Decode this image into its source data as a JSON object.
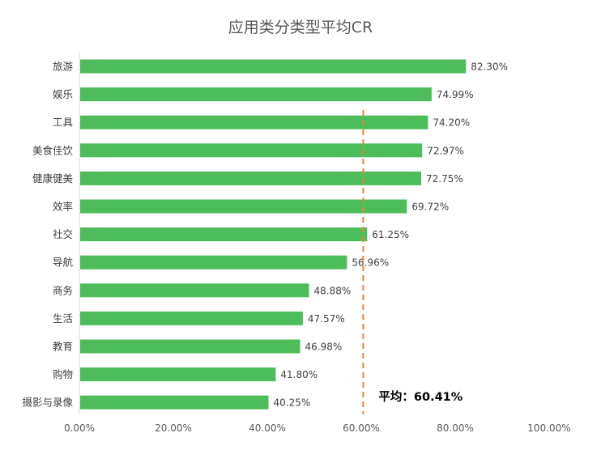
{
  "chart_data": {
    "type": "bar",
    "orientation": "horizontal",
    "title": "应用类分类型平均CR",
    "categories": [
      "旅游",
      "娱乐",
      "工具",
      "美食佳饮",
      "健康健美",
      "效率",
      "社交",
      "导航",
      "商务",
      "生活",
      "教育",
      "购物",
      "摄影与录像"
    ],
    "values": [
      82.3,
      74.99,
      74.2,
      72.97,
      72.75,
      69.72,
      61.25,
      56.96,
      48.88,
      47.57,
      46.98,
      41.8,
      40.25
    ],
    "value_labels": [
      "82.30%",
      "74.99%",
      "74.20%",
      "72.97%",
      "72.75%",
      "69.72%",
      "61.25%",
      "56.96%",
      "48.88%",
      "47.57%",
      "46.98%",
      "41.80%",
      "40.25%"
    ],
    "xlim": [
      0,
      100
    ],
    "x_ticks": [
      0,
      20,
      40,
      60,
      80,
      100
    ],
    "x_tick_labels": [
      "0.00%",
      "20.00%",
      "40.00%",
      "60.00%",
      "80.00%",
      "100.00%"
    ],
    "grid": false,
    "reference_line": {
      "value": 60.41,
      "label": "平均：60.41%",
      "style": "dashed"
    },
    "colors": {
      "bar": "#4cbd5a",
      "reference_line": "#e8853a",
      "axis": "#d9d9d9",
      "text": "#595959",
      "title": "#595959"
    }
  }
}
